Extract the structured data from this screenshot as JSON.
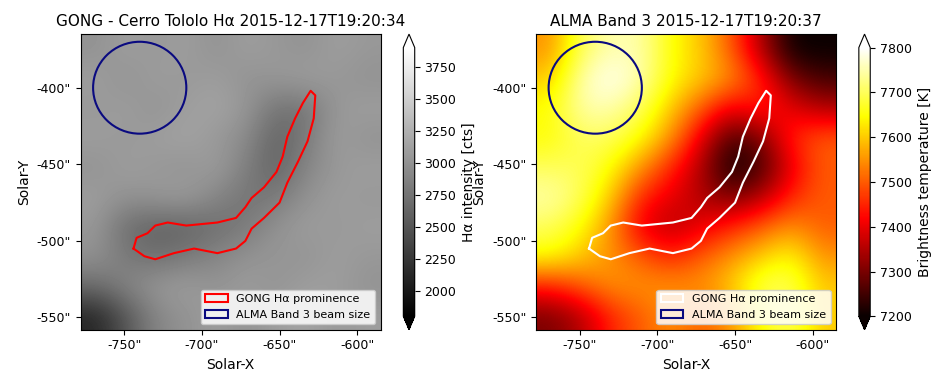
{
  "chart_data": [
    {
      "type": "heatmap",
      "title": "GONG - Cerro Tololo Hα 2015-12-17T19:20:34",
      "xlabel": "Solar-X",
      "ylabel": "Solar-Y",
      "xlim": [
        -778,
        -585
      ],
      "ylim": [
        -558,
        -365
      ],
      "xticks": [
        {
          "value": -750,
          "label": "-750\""
        },
        {
          "value": -700,
          "label": "-700\""
        },
        {
          "value": -650,
          "label": "-650\""
        },
        {
          "value": -600,
          "label": "-600\""
        }
      ],
      "yticks": [
        {
          "value": -550,
          "label": "-550\""
        },
        {
          "value": -500,
          "label": "-500\""
        },
        {
          "value": -450,
          "label": "-450\""
        },
        {
          "value": -400,
          "label": "-400\""
        }
      ],
      "color": "gray",
      "cells": [
        [
          2100,
          2500,
          2900,
          3000,
          3100,
          3000,
          3100,
          3150,
          3050,
          3100
        ],
        [
          2700,
          2900,
          3050,
          3100,
          3000,
          3100,
          3000,
          3100,
          3100,
          3000
        ],
        [
          3000,
          2800,
          2700,
          2800,
          2900,
          3000,
          3050,
          3000,
          3100,
          3050
        ],
        [
          3050,
          2700,
          2600,
          2600,
          2700,
          2800,
          3000,
          3100,
          3050,
          3100
        ],
        [
          3100,
          3000,
          3050,
          3100,
          2900,
          2750,
          2800,
          3000,
          3100,
          3050
        ],
        [
          3000,
          3100,
          3050,
          3000,
          3100,
          2850,
          2600,
          2900,
          3050,
          3100
        ],
        [
          3100,
          3050,
          3100,
          3150,
          3050,
          2950,
          2600,
          2800,
          3100,
          3000
        ],
        [
          3050,
          3100,
          3000,
          3100,
          3150,
          3050,
          2750,
          2750,
          3050,
          3100
        ],
        [
          3100,
          3000,
          3100,
          3050,
          3100,
          3000,
          3050,
          3100,
          3050,
          3000
        ],
        [
          3000,
          3100,
          3050,
          3100,
          3000,
          3100,
          3050,
          3000,
          3100,
          3050
        ]
      ],
      "colorbar_label": "Hα intensity [cts]",
      "colorbar_range": [
        1800,
        3900
      ],
      "colorbar_ticks": [
        2000,
        2250,
        2500,
        2750,
        3000,
        3250,
        3500,
        3750
      ],
      "prominence": {
        "name": "GONG Hα prominence",
        "color": "#ff0000",
        "x": [
          -744,
          -742,
          -735,
          -730,
          -722,
          -710,
          -690,
          -678,
          -672,
          -668,
          -660,
          -652,
          -648,
          -645,
          -640,
          -635,
          -630,
          -627,
          -628,
          -632,
          -638,
          -645,
          -650,
          -660,
          -668,
          -672,
          -678,
          -690,
          -705,
          -718,
          -730,
          -737,
          -744
        ],
        "y": [
          -505,
          -498,
          -495,
          -490,
          -488,
          -490,
          -488,
          -485,
          -478,
          -472,
          -465,
          -455,
          -445,
          -432,
          -420,
          -410,
          -402,
          -405,
          -420,
          -435,
          -448,
          -462,
          -475,
          -485,
          -492,
          -500,
          -505,
          -508,
          -505,
          -508,
          -512,
          -510,
          -505
        ]
      },
      "beam": {
        "name": "ALMA Band 3 beam size",
        "color": "#0a0a80",
        "center": [
          -740,
          -400
        ],
        "radius": 30
      },
      "legend": "lower right"
    },
    {
      "type": "heatmap",
      "title": "ALMA Band 3 2015-12-17T19:20:37",
      "xlabel": "Solar-X",
      "ylabel": "Solar-Y",
      "xlim": [
        -778,
        -585
      ],
      "ylim": [
        -558,
        -365
      ],
      "xticks": [
        {
          "value": -750,
          "label": "-750\""
        },
        {
          "value": -700,
          "label": "-700\""
        },
        {
          "value": -650,
          "label": "-650\""
        },
        {
          "value": -600,
          "label": "-600\""
        }
      ],
      "yticks": [
        {
          "value": -550,
          "label": "-550\""
        },
        {
          "value": -500,
          "label": "-500\""
        },
        {
          "value": -450,
          "label": "-450\""
        },
        {
          "value": -400,
          "label": "-400\""
        }
      ],
      "color": "hot",
      "cells": [
        [
          7300,
          7350,
          7450,
          7500,
          7550,
          7500,
          7550,
          7650,
          7700,
          7600
        ],
        [
          7450,
          7500,
          7550,
          7550,
          7550,
          7550,
          7600,
          7700,
          7700,
          7600
        ],
        [
          7650,
          7600,
          7550,
          7500,
          7450,
          7500,
          7550,
          7600,
          7650,
          7550
        ],
        [
          7700,
          7650,
          7550,
          7400,
          7350,
          7400,
          7450,
          7500,
          7550,
          7500
        ],
        [
          7750,
          7700,
          7600,
          7450,
          7400,
          7350,
          7300,
          7350,
          7450,
          7500
        ],
        [
          7700,
          7700,
          7650,
          7550,
          7450,
          7350,
          7200,
          7250,
          7400,
          7500
        ],
        [
          7650,
          7700,
          7700,
          7650,
          7550,
          7400,
          7250,
          7300,
          7450,
          7500
        ],
        [
          7650,
          7750,
          7750,
          7700,
          7600,
          7500,
          7400,
          7450,
          7400,
          7350
        ],
        [
          7600,
          7750,
          7800,
          7750,
          7650,
          7600,
          7550,
          7450,
          7300,
          7250
        ],
        [
          7550,
          7700,
          7750,
          7750,
          7650,
          7600,
          7500,
          7350,
          7200,
          7200
        ]
      ],
      "colorbar_label": "Brightness temperature [K]",
      "colorbar_range": [
        7200,
        7800
      ],
      "colorbar_ticks": [
        7200,
        7300,
        7400,
        7500,
        7600,
        7700,
        7800
      ],
      "prominence": {
        "name": "GONG Hα prominence",
        "color": "#ffffff",
        "x": [
          -744,
          -742,
          -735,
          -730,
          -722,
          -710,
          -690,
          -678,
          -672,
          -668,
          -660,
          -652,
          -648,
          -645,
          -640,
          -635,
          -630,
          -627,
          -628,
          -632,
          -638,
          -645,
          -650,
          -660,
          -668,
          -672,
          -678,
          -690,
          -705,
          -718,
          -730,
          -737,
          -744
        ],
        "y": [
          -505,
          -498,
          -495,
          -490,
          -488,
          -490,
          -488,
          -485,
          -478,
          -472,
          -465,
          -455,
          -445,
          -432,
          -420,
          -410,
          -402,
          -405,
          -420,
          -435,
          -448,
          -462,
          -475,
          -485,
          -492,
          -500,
          -505,
          -508,
          -505,
          -508,
          -512,
          -510,
          -505
        ]
      },
      "beam": {
        "name": "ALMA Band 3 beam size",
        "color": "#0a0a80",
        "center": [
          -740,
          -400
        ],
        "radius": 30
      },
      "legend": "lower right"
    }
  ]
}
